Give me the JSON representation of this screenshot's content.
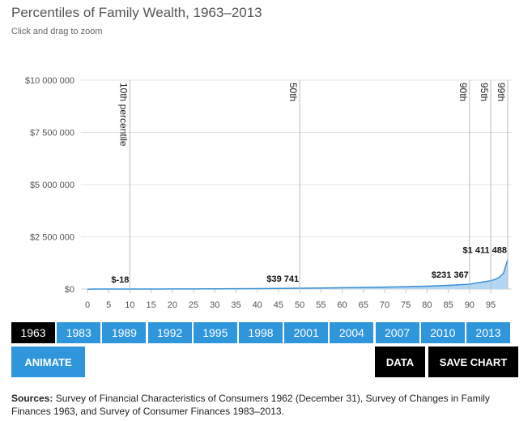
{
  "chart_data": {
    "type": "area",
    "title": "Percentiles of Family Wealth, 1963–2013",
    "subtitle": "Click and drag to zoom",
    "x": [
      0,
      1,
      2,
      3,
      4,
      5,
      6,
      7,
      8,
      9,
      10,
      11,
      12,
      13,
      14,
      15,
      16,
      17,
      18,
      19,
      20,
      25,
      30,
      35,
      40,
      45,
      50,
      55,
      60,
      65,
      70,
      75,
      80,
      85,
      90,
      95,
      96,
      97,
      98,
      99
    ],
    "values": [
      -8000,
      -2000,
      -500,
      -100,
      -50,
      -30,
      -25,
      -22,
      -20,
      -19,
      -18,
      0,
      50,
      200,
      500,
      900,
      1300,
      1700,
      2100,
      2600,
      3100,
      6000,
      10000,
      15000,
      21000,
      29500,
      39741,
      50000,
      62000,
      76000,
      92000,
      112000,
      138000,
      175000,
      231367,
      400000,
      460000,
      560000,
      750000,
      1411488
    ],
    "value_labels": [
      null,
      null,
      null,
      null,
      null,
      null,
      null,
      null,
      null,
      null,
      "$-18",
      null,
      null,
      null,
      null,
      null,
      null,
      null,
      null,
      null,
      null,
      null,
      null,
      null,
      null,
      null,
      "$39 741",
      null,
      null,
      null,
      null,
      null,
      null,
      null,
      "$231 367",
      null,
      null,
      null,
      null,
      "$1 411 488"
    ],
    "color": "#3a8fd6",
    "fill": "#b3d6f2",
    "xlim": [
      0,
      99
    ],
    "xticks": [
      0,
      5,
      10,
      15,
      20,
      25,
      30,
      35,
      40,
      45,
      50,
      55,
      60,
      65,
      70,
      75,
      80,
      85,
      90,
      95
    ],
    "ylim": [
      0,
      10000000
    ],
    "yticks": [
      {
        "value": 0,
        "label": "$0"
      },
      {
        "value": 2500000,
        "label": "$2 500 000"
      },
      {
        "value": 5000000,
        "label": "$5 000 000"
      },
      {
        "value": 7500000,
        "label": "$7 500 000"
      },
      {
        "value": 10000000,
        "label": "$10 000 000"
      }
    ],
    "grid": true,
    "percentile_lines": [
      {
        "x": 10,
        "label": "10th percentile"
      },
      {
        "x": 50,
        "label": "50th"
      },
      {
        "x": 90,
        "label": "90th"
      },
      {
        "x": 95,
        "label": "95th"
      },
      {
        "x": 99,
        "label": "99th"
      }
    ],
    "years": [
      "1963",
      "1983",
      "1989",
      "1992",
      "1995",
      "1998",
      "2001",
      "2004",
      "2007",
      "2010",
      "2013"
    ],
    "active_year": "1963",
    "buttons": {
      "animate": "ANIMATE",
      "data": "DATA",
      "save": "SAVE CHART"
    },
    "sources_label": "Sources:",
    "sources_text": "Survey of Financial Characteristics of Consumers 1962 (December 31), Survey of Changes in Family Finances 1963, and Survey of Consumer Finances 1983–2013."
  }
}
